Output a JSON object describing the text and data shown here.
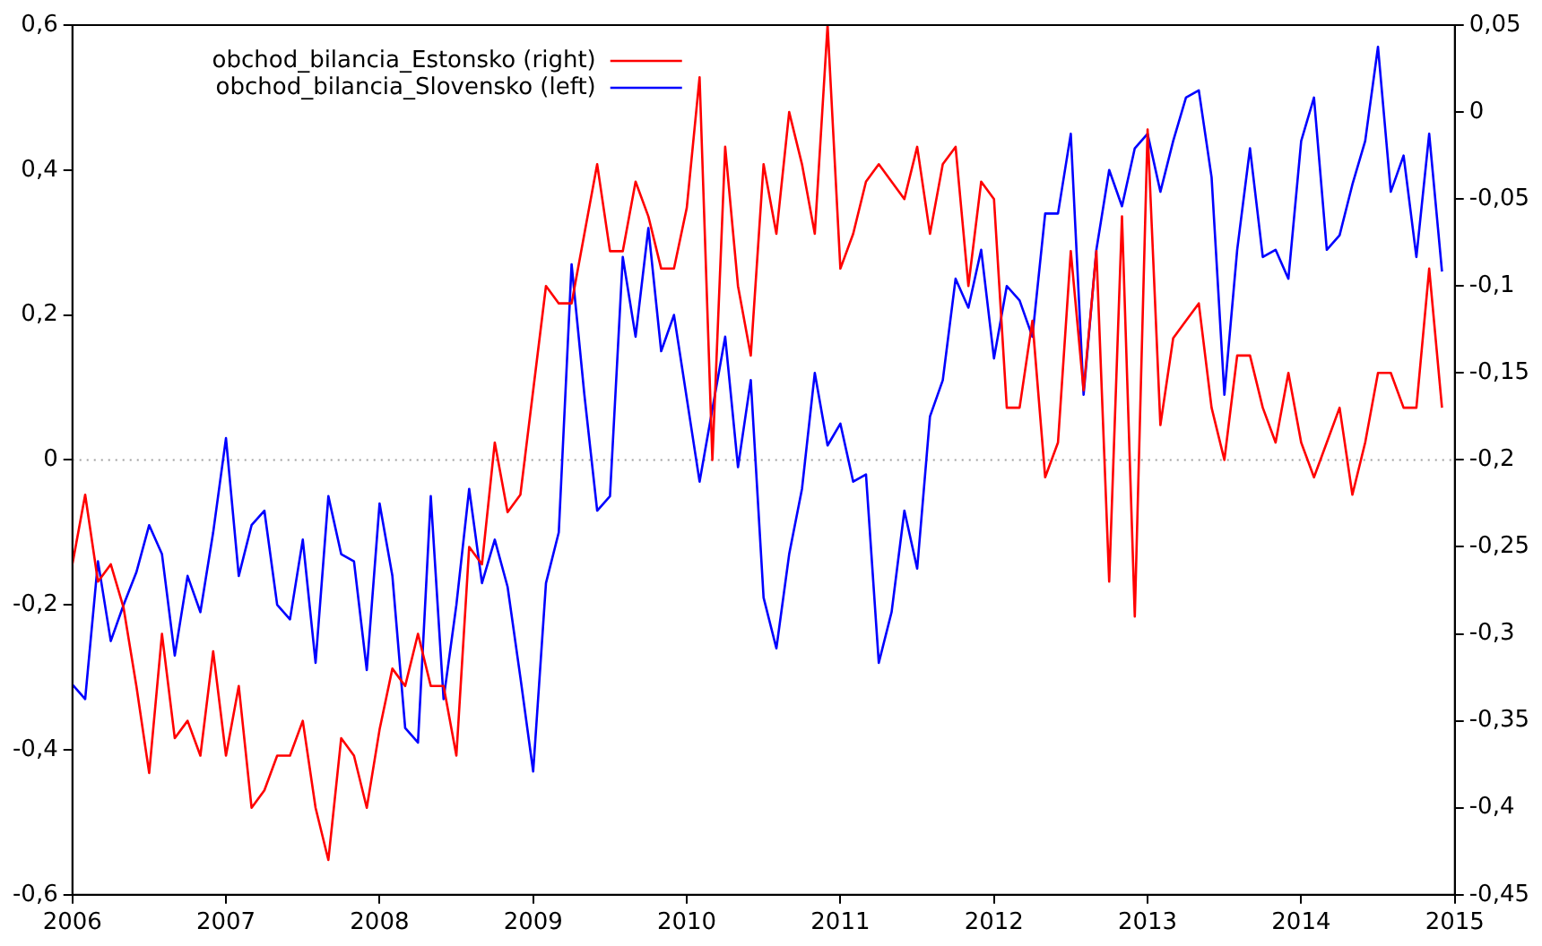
{
  "chart_data": {
    "type": "line",
    "x": [
      "2006-01",
      "2006-02",
      "2006-03",
      "2006-04",
      "2006-05",
      "2006-06",
      "2006-07",
      "2006-08",
      "2006-09",
      "2006-10",
      "2006-11",
      "2006-12",
      "2007-01",
      "2007-02",
      "2007-03",
      "2007-04",
      "2007-05",
      "2007-06",
      "2007-07",
      "2007-08",
      "2007-09",
      "2007-10",
      "2007-11",
      "2007-12",
      "2008-01",
      "2008-02",
      "2008-03",
      "2008-04",
      "2008-05",
      "2008-06",
      "2008-07",
      "2008-08",
      "2008-09",
      "2008-10",
      "2008-11",
      "2008-12",
      "2009-01",
      "2009-02",
      "2009-03",
      "2009-04",
      "2009-05",
      "2009-06",
      "2009-07",
      "2009-08",
      "2009-09",
      "2009-10",
      "2009-11",
      "2009-12",
      "2010-01",
      "2010-02",
      "2010-03",
      "2010-04",
      "2010-05",
      "2010-06",
      "2010-07",
      "2010-08",
      "2010-09",
      "2010-10",
      "2010-11",
      "2010-12",
      "2011-01",
      "2011-02",
      "2011-03",
      "2011-04",
      "2011-05",
      "2011-06",
      "2011-07",
      "2011-08",
      "2011-09",
      "2011-10",
      "2011-11",
      "2011-12",
      "2012-01",
      "2012-02",
      "2012-03",
      "2012-04",
      "2012-05",
      "2012-06",
      "2012-07",
      "2012-08",
      "2012-09",
      "2012-10",
      "2012-11",
      "2012-12",
      "2013-01",
      "2013-02",
      "2013-03",
      "2013-04",
      "2013-05",
      "2013-06",
      "2013-07",
      "2013-08",
      "2013-09",
      "2013-10",
      "2013-11",
      "2013-12",
      "2014-01",
      "2014-02",
      "2014-03",
      "2014-04",
      "2014-05",
      "2014-06",
      "2014-07",
      "2014-08",
      "2014-09",
      "2014-10",
      "2014-11",
      "2014-12"
    ],
    "series": [
      {
        "name": "obchod_bilancia_Estonsko (right)",
        "color": "#ff0000",
        "axis": "y2",
        "values": [
          -0.26,
          -0.22,
          -0.27,
          -0.26,
          -0.285,
          -0.33,
          -0.38,
          -0.3,
          -0.36,
          -0.35,
          -0.37,
          -0.31,
          -0.37,
          -0.33,
          -0.4,
          -0.39,
          -0.37,
          -0.37,
          -0.35,
          -0.4,
          -0.43,
          -0.36,
          -0.37,
          -0.4,
          -0.355,
          -0.32,
          -0.33,
          -0.3,
          -0.33,
          -0.33,
          -0.37,
          -0.25,
          -0.26,
          -0.19,
          -0.23,
          -0.22,
          -0.16,
          -0.1,
          -0.11,
          -0.11,
          -0.07,
          -0.03,
          -0.08,
          -0.08,
          -0.04,
          -0.06,
          -0.09,
          -0.09,
          -0.055,
          0.02,
          -0.2,
          -0.02,
          -0.1,
          -0.14,
          -0.03,
          -0.07,
          0,
          -0.03,
          -0.07,
          0.05,
          -0.09,
          -0.07,
          -0.04,
          -0.03,
          -0.04,
          -0.05,
          -0.02,
          -0.07,
          -0.03,
          -0.02,
          -0.1,
          -0.04,
          -0.05,
          -0.17,
          -0.17,
          -0.12,
          -0.21,
          -0.19,
          -0.08,
          -0.16,
          -0.08,
          -0.27,
          -0.06,
          -0.29,
          -0.01,
          -0.18,
          -0.13,
          -0.12,
          -0.11,
          -0.17,
          -0.2,
          -0.14,
          -0.14,
          -0.17,
          -0.19,
          -0.15,
          -0.19,
          -0.21,
          -0.19,
          -0.17,
          -0.22,
          -0.19,
          -0.15,
          -0.15,
          -0.17,
          -0.17,
          -0.09,
          -0.17
        ]
      },
      {
        "name": "obchod_bilancia_Slovensko (left)",
        "color": "#0000ff",
        "values": [
          -0.31,
          -0.33,
          -0.14,
          -0.25,
          -0.2,
          -0.155,
          -0.09,
          -0.13,
          -0.27,
          -0.16,
          -0.21,
          -0.1,
          0.03,
          -0.16,
          -0.09,
          -0.07,
          -0.2,
          -0.22,
          -0.11,
          -0.28,
          -0.05,
          -0.13,
          -0.14,
          -0.29,
          -0.06,
          -0.16,
          -0.37,
          -0.39,
          -0.05,
          -0.33,
          -0.2,
          -0.04,
          -0.17,
          -0.11,
          -0.175,
          -0.3,
          -0.43,
          -0.17,
          -0.1,
          0.27,
          0.09,
          -0.07,
          -0.05,
          0.28,
          0.17,
          0.32,
          0.15,
          0.2,
          0.085,
          -0.03,
          0.07,
          0.17,
          -0.01,
          0.11,
          -0.19,
          -0.26,
          -0.13,
          -0.04,
          0.12,
          0.02,
          0.05,
          -0.03,
          -0.02,
          -0.28,
          -0.21,
          -0.07,
          -0.15,
          0.06,
          0.11,
          0.25,
          0.21,
          0.29,
          0.14,
          0.24,
          0.22,
          0.17,
          0.34,
          0.34,
          0.45,
          0.09,
          0.29,
          0.4,
          0.35,
          0.43,
          0.45,
          0.37,
          0.44,
          0.5,
          0.51,
          0.39,
          0.09,
          0.29,
          0.43,
          0.28,
          0.29,
          0.25,
          0.44,
          0.5,
          0.29,
          0.31,
          0.38,
          0.44,
          0.57,
          0.37,
          0.42,
          0.28,
          0.45,
          0.26
        ]
      }
    ],
    "xlim": [
      "2006-01",
      "2015-01"
    ],
    "xticks": [
      {
        "value": "2006-01",
        "label": "2006"
      },
      {
        "value": "2007-01",
        "label": "2007"
      },
      {
        "value": "2008-01",
        "label": "2008"
      },
      {
        "value": "2009-01",
        "label": "2009"
      },
      {
        "value": "2010-01",
        "label": "2010"
      },
      {
        "value": "2011-01",
        "label": "2011"
      },
      {
        "value": "2012-01",
        "label": "2012"
      },
      {
        "value": "2013-01",
        "label": "2013"
      },
      {
        "value": "2014-01",
        "label": "2014"
      },
      {
        "value": "2015-01",
        "label": "2015"
      }
    ],
    "ylim": [
      -0.6,
      0.6
    ],
    "yticks": [
      {
        "value": -0.6,
        "label": "-0,6"
      },
      {
        "value": -0.4,
        "label": "-0,4"
      },
      {
        "value": -0.2,
        "label": "-0,2"
      },
      0,
      {
        "value": 0.2,
        "label": "0,2"
      },
      {
        "value": 0.4,
        "label": "0,4"
      },
      {
        "value": 0.6,
        "label": "0,6"
      }
    ],
    "y2lim": [
      -0.45,
      0.05
    ],
    "y2ticks": [
      {
        "value": -0.45,
        "label": "-0,45"
      },
      {
        "value": -0.4,
        "label": "-0,4"
      },
      {
        "value": -0.35,
        "label": "-0,35"
      },
      {
        "value": -0.3,
        "label": "-0,3"
      },
      {
        "value": -0.25,
        "label": "-0,25"
      },
      {
        "value": -0.2,
        "label": "-0,2"
      },
      {
        "value": -0.15,
        "label": "-0,15"
      },
      {
        "value": -0.1,
        "label": "-0,1"
      },
      {
        "value": -0.05,
        "label": "-0,05"
      },
      0,
      {
        "value": 0.05,
        "label": "0,05"
      }
    ],
    "ref_lines": [
      {
        "axis": "y",
        "value": 0,
        "color": "#a0a0a0",
        "line_style": "dotted"
      }
    ],
    "legend": "top left",
    "line_style": "solid"
  }
}
